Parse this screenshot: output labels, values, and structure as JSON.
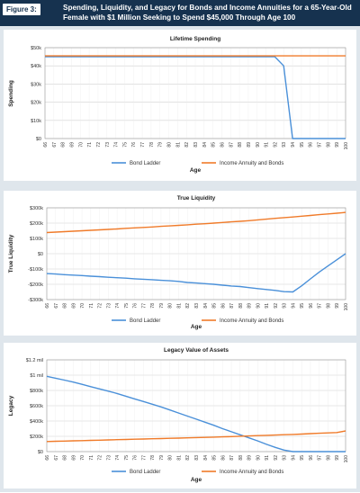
{
  "figure": {
    "label": "Figure 3:",
    "title": "Spending, Liquidity, and Legacy for Bonds and Income Annuities for a 65-Year-Old Female with $1 Million Seeking to Spend $45,000 Through Age 100"
  },
  "colors": {
    "bond_ladder": "#4a90d9",
    "annuity": "#f07b2a",
    "header_bg": "#16324f",
    "panel_bg": "#dfe6ec",
    "grid": "#d0d0d0"
  },
  "chart_data": [
    {
      "type": "line",
      "title": "Lifetime Spending",
      "xlabel": "Age",
      "ylabel": "Spending",
      "x": [
        66,
        67,
        68,
        69,
        70,
        71,
        72,
        73,
        74,
        75,
        76,
        77,
        78,
        79,
        80,
        81,
        82,
        83,
        84,
        85,
        86,
        87,
        88,
        89,
        90,
        91,
        92,
        93,
        94,
        95,
        96,
        97,
        98,
        99,
        100
      ],
      "ylim": [
        0,
        50000
      ],
      "yticks": [
        0,
        10000,
        20000,
        30000,
        40000,
        50000
      ],
      "ytick_labels": [
        "$0",
        "$10k",
        "$20k",
        "$30k",
        "$40k",
        "$50k"
      ],
      "grid": true,
      "legend": "bottom",
      "series": [
        {
          "name": "Bond Ladder",
          "color": "#4a90d9",
          "values": [
            45000,
            45000,
            45000,
            45000,
            45000,
            45000,
            45000,
            45000,
            45000,
            45000,
            45000,
            45000,
            45000,
            45000,
            45000,
            45000,
            45000,
            45000,
            45000,
            45000,
            45000,
            45000,
            45000,
            45000,
            45000,
            45000,
            45000,
            40000,
            0,
            0,
            0,
            0,
            0,
            0,
            0
          ]
        },
        {
          "name": "Income Annuity and Bonds",
          "color": "#f07b2a",
          "values": [
            45500,
            45500,
            45500,
            45500,
            45500,
            45500,
            45500,
            45500,
            45500,
            45500,
            45500,
            45500,
            45500,
            45500,
            45500,
            45500,
            45500,
            45500,
            45500,
            45500,
            45500,
            45500,
            45500,
            45500,
            45500,
            45500,
            45500,
            45500,
            45500,
            45500,
            45500,
            45500,
            45500,
            45500,
            45500
          ]
        }
      ]
    },
    {
      "type": "line",
      "title": "True Liquidity",
      "xlabel": "Age",
      "ylabel": "True Liquidity",
      "x": [
        66,
        67,
        68,
        69,
        70,
        71,
        72,
        73,
        74,
        75,
        76,
        77,
        78,
        79,
        80,
        81,
        82,
        83,
        84,
        85,
        86,
        87,
        88,
        89,
        90,
        91,
        92,
        93,
        94,
        95,
        96,
        97,
        98,
        99,
        100
      ],
      "ylim": [
        -300000,
        300000
      ],
      "yticks": [
        -300000,
        -200000,
        -100000,
        0,
        100000,
        200000,
        300000
      ],
      "ytick_labels": [
        "-$300k",
        "-$200k",
        "-$100k",
        "$0",
        "$100k",
        "$200k",
        "$300k"
      ],
      "grid": true,
      "legend": "bottom",
      "series": [
        {
          "name": "Bond Ladder",
          "color": "#4a90d9",
          "values": [
            -130000,
            -133000,
            -137000,
            -140000,
            -143000,
            -147000,
            -150000,
            -154000,
            -157000,
            -160000,
            -164000,
            -167000,
            -170000,
            -174000,
            -177000,
            -181000,
            -188000,
            -192000,
            -196000,
            -200000,
            -206000,
            -211000,
            -215000,
            -222000,
            -228000,
            -234000,
            -240000,
            -248000,
            -250000,
            -210000,
            -165000,
            -120000,
            -80000,
            -40000,
            0
          ]
        },
        {
          "name": "Income Annuity and Bonds",
          "color": "#f07b2a",
          "values": [
            138000,
            141000,
            144000,
            147000,
            150000,
            153000,
            156000,
            159000,
            162000,
            166000,
            169000,
            172000,
            175000,
            179000,
            182000,
            185000,
            189000,
            193000,
            196000,
            200000,
            204000,
            208000,
            212000,
            216000,
            221000,
            226000,
            231000,
            236000,
            240000,
            245000,
            250000,
            255000,
            260000,
            265000,
            270000
          ]
        }
      ]
    },
    {
      "type": "line",
      "title": "Legacy Value of Assets",
      "xlabel": "Age",
      "ylabel": "Legacy",
      "x": [
        66,
        67,
        68,
        69,
        70,
        71,
        72,
        73,
        74,
        75,
        76,
        77,
        78,
        79,
        80,
        81,
        82,
        83,
        84,
        85,
        86,
        87,
        88,
        89,
        90,
        91,
        92,
        93,
        94,
        95,
        96,
        97,
        98,
        99,
        100
      ],
      "ylim": [
        0,
        1200000
      ],
      "yticks": [
        0,
        200000,
        400000,
        600000,
        800000,
        1000000,
        1200000
      ],
      "ytick_labels": [
        "$0",
        "$200k",
        "$400k",
        "$600k",
        "$800k",
        "$1 mil",
        "$1.2 mil"
      ],
      "grid": true,
      "legend": "bottom",
      "series": [
        {
          "name": "Bond Ladder",
          "color": "#4a90d9",
          "values": [
            985000,
            960000,
            935000,
            910000,
            880000,
            850000,
            820000,
            790000,
            760000,
            725000,
            690000,
            655000,
            620000,
            585000,
            545000,
            505000,
            465000,
            425000,
            385000,
            345000,
            300000,
            260000,
            220000,
            180000,
            140000,
            95000,
            55000,
            20000,
            0,
            0,
            0,
            0,
            0,
            0,
            0
          ]
        },
        {
          "name": "Income Annuity and Bonds",
          "color": "#f07b2a",
          "values": [
            132000,
            135000,
            138000,
            141000,
            144000,
            147000,
            150000,
            153000,
            156000,
            159000,
            162000,
            165000,
            168000,
            171000,
            174000,
            177000,
            180000,
            183000,
            186000,
            189000,
            193000,
            197000,
            201000,
            205000,
            209000,
            213000,
            217000,
            221000,
            225000,
            230000,
            235000,
            240000,
            245000,
            250000,
            270000
          ]
        }
      ]
    }
  ]
}
